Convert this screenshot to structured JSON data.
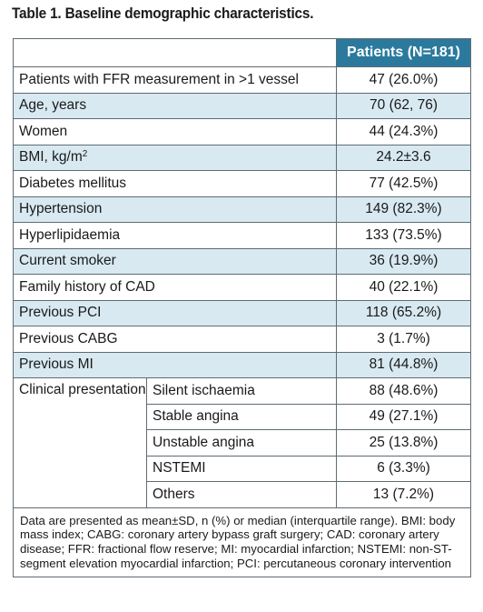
{
  "caption": "Table 1. Baseline demographic characteristics.",
  "header": {
    "column_label": "Patients (N=181)"
  },
  "rows": [
    {
      "label": "Patients with FFR measurement in >1 vessel",
      "value": "47 (26.0%)"
    },
    {
      "label": "Age, years",
      "value": "70 (62, 76)"
    },
    {
      "label": "Women",
      "value": "44 (24.3%)"
    },
    {
      "label": "BMI, kg/m",
      "label_sup": "2",
      "value": "24.2±3.6"
    },
    {
      "label": "Diabetes mellitus",
      "value": "77 (42.5%)"
    },
    {
      "label": "Hypertension",
      "value": "149 (82.3%)"
    },
    {
      "label": "Hyperlipidaemia",
      "value": "133 (73.5%)"
    },
    {
      "label": "Current smoker",
      "value": "36 (19.9%)"
    },
    {
      "label": "Family history of CAD",
      "value": "40 (22.1%)"
    },
    {
      "label": "Previous PCI",
      "value": "118 (65.2%)"
    },
    {
      "label": "Previous CABG",
      "value": "3 (1.7%)"
    },
    {
      "label": "Previous MI",
      "value": "81 (44.8%)"
    }
  ],
  "clinical_presentation": {
    "label": "Clinical presentation",
    "items": [
      {
        "label": "Silent ischaemia",
        "value": "88 (48.6%)"
      },
      {
        "label": "Stable angina",
        "value": "49 (27.1%)"
      },
      {
        "label": "Unstable angina",
        "value": "25 (13.8%)"
      },
      {
        "label": "NSTEMI",
        "value": "6 (3.3%)"
      },
      {
        "label": "Others",
        "value": "13 (7.2%)"
      }
    ]
  },
  "footnote": "Data are presented as mean±SD, n (%) or median (interquartile range). BMI: body mass index; CABG: coronary artery bypass graft surgery; CAD: coronary artery disease; FFR: fractional flow reserve; MI: myocardial infarction; NSTEMI: non-ST-segment elevation myocardial infarction; PCI: percutaneous coronary intervention",
  "colors": {
    "header": "#2b7a9e",
    "shade": "#d8e9f1",
    "border": "#5f6b73"
  }
}
